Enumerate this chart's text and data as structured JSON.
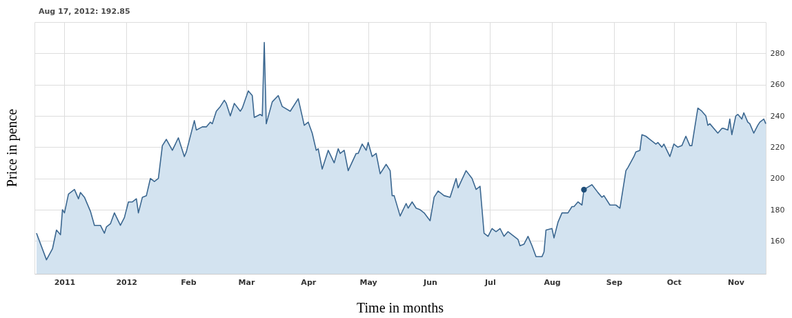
{
  "chart_data": {
    "type": "area",
    "xlabel": "Time in months",
    "ylabel": "Price in pence",
    "annotations": [
      "Aug 17, 2012: 192.85"
    ],
    "x": [
      "2011-11-17",
      "2011-11-22",
      "2011-11-25",
      "2011-11-27",
      "2011-11-29",
      "2011-11-30",
      "2011-12-01",
      "2011-12-03",
      "2011-12-06",
      "2011-12-08",
      "2011-12-09",
      "2011-12-11",
      "2011-12-14",
      "2011-12-16",
      "2011-12-19",
      "2011-12-21",
      "2011-12-22",
      "2011-12-24",
      "2011-12-26",
      "2011-12-29",
      "2011-12-31",
      "2012-01-02",
      "2012-01-04",
      "2012-01-06",
      "2012-01-07",
      "2012-01-09",
      "2012-01-11",
      "2012-01-13",
      "2012-01-15",
      "2012-01-17",
      "2012-01-19",
      "2012-01-21",
      "2012-01-24",
      "2012-01-27",
      "2012-01-30",
      "2012-01-31",
      "2012-02-04",
      "2012-02-05",
      "2012-02-08",
      "2012-02-10",
      "2012-02-12",
      "2012-02-13",
      "2012-02-15",
      "2012-02-17",
      "2012-02-19",
      "2012-02-20",
      "2012-02-22",
      "2012-02-24",
      "2012-02-27",
      "2012-02-28",
      "2012-03-02",
      "2012-03-04",
      "2012-03-05",
      "2012-03-08",
      "2012-03-09",
      "2012-03-10",
      "2012-03-11",
      "2012-03-14",
      "2012-03-17",
      "2012-03-19",
      "2012-03-23",
      "2012-03-27",
      "2012-03-30",
      "2012-04-01",
      "2012-04-03",
      "2012-04-05",
      "2012-04-06",
      "2012-04-08",
      "2012-04-11",
      "2012-04-14",
      "2012-04-16",
      "2012-04-17",
      "2012-04-19",
      "2012-04-21",
      "2012-04-25",
      "2012-04-26",
      "2012-04-28",
      "2012-04-30",
      "2012-05-01",
      "2012-05-03",
      "2012-05-05",
      "2012-05-07",
      "2012-05-10",
      "2012-05-12",
      "2012-05-13",
      "2012-05-14",
      "2012-05-17",
      "2012-05-20",
      "2012-05-21",
      "2012-05-23",
      "2012-05-25",
      "2012-05-27",
      "2012-05-29",
      "2012-06-01",
      "2012-06-03",
      "2012-06-05",
      "2012-06-07",
      "2012-06-08",
      "2012-06-11",
      "2012-06-14",
      "2012-06-15",
      "2012-06-19",
      "2012-06-22",
      "2012-06-24",
      "2012-06-26",
      "2012-06-28",
      "2012-06-30",
      "2012-07-02",
      "2012-07-04",
      "2012-07-06",
      "2012-07-08",
      "2012-07-10",
      "2012-07-13",
      "2012-07-15",
      "2012-07-16",
      "2012-07-18",
      "2012-07-20",
      "2012-07-22",
      "2012-07-24",
      "2012-07-27",
      "2012-07-28",
      "2012-07-29",
      "2012-08-01",
      "2012-08-02",
      "2012-08-04",
      "2012-08-06",
      "2012-08-09",
      "2012-08-11",
      "2012-08-12",
      "2012-08-14",
      "2012-08-16",
      "2012-08-17",
      "2012-08-21",
      "2012-08-24",
      "2012-08-26",
      "2012-08-27",
      "2012-08-30",
      "2012-09-01",
      "2012-09-02",
      "2012-09-04",
      "2012-09-07",
      "2012-09-08",
      "2012-09-11",
      "2012-09-12",
      "2012-09-14",
      "2012-09-15",
      "2012-09-17",
      "2012-09-19",
      "2012-09-22",
      "2012-09-23",
      "2012-09-25",
      "2012-09-26",
      "2012-09-29",
      "2012-10-01",
      "2012-10-03",
      "2012-10-05",
      "2012-10-07",
      "2012-10-09",
      "2012-10-10",
      "2012-10-13",
      "2012-10-15",
      "2012-10-17",
      "2012-10-18",
      "2012-10-19",
      "2012-10-23",
      "2012-10-25",
      "2012-10-26",
      "2012-10-28",
      "2012-10-29",
      "2012-10-30",
      "2012-11-01",
      "2012-11-02",
      "2012-11-04",
      "2012-11-05",
      "2012-11-07",
      "2012-11-08",
      "2012-11-10",
      "2012-11-12",
      "2012-11-13",
      "2012-11-15",
      "2012-11-16"
    ],
    "series": [
      {
        "color": "#3b6790",
        "values": [
          165,
          148,
          155,
          167,
          164,
          180,
          178,
          190,
          193,
          187,
          191,
          188,
          179,
          170,
          170,
          165,
          169,
          171,
          178,
          170,
          175,
          185,
          185,
          187,
          178,
          188,
          189,
          200,
          198,
          200,
          221,
          225,
          218,
          226,
          214,
          217,
          237,
          231,
          233,
          233,
          236,
          235,
          243,
          246,
          250,
          248,
          240,
          248,
          243,
          245,
          256,
          253,
          239,
          241,
          240,
          287,
          235,
          249,
          253,
          246,
          243,
          251,
          234,
          236,
          229,
          218,
          219,
          206,
          218,
          210,
          219,
          216,
          218,
          205,
          216,
          216,
          222,
          218,
          223,
          214,
          216,
          203,
          209,
          205,
          189,
          189,
          176,
          184,
          181,
          185,
          181,
          180,
          178,
          173,
          188,
          192,
          190,
          189,
          188,
          200,
          194,
          205,
          200,
          193,
          195,
          165,
          163,
          168,
          166,
          168,
          163,
          166,
          163,
          161,
          157,
          158,
          163,
          157,
          150,
          150,
          153,
          167,
          168,
          162,
          172,
          178,
          178,
          182,
          182,
          185,
          183,
          193,
          196,
          191,
          188,
          189,
          183,
          183,
          183,
          181,
          205,
          207,
          214,
          217,
          218,
          228,
          227,
          225,
          222,
          223,
          220,
          222,
          214,
          222,
          220,
          221,
          227,
          221,
          221,
          245,
          243,
          240,
          234,
          235,
          229,
          232,
          232,
          231,
          238,
          228,
          240,
          241,
          238,
          242,
          236,
          235,
          229,
          234,
          236,
          238,
          235
        ]
      },
      {
        "type": "scatter",
        "color": "#1f4e79",
        "marker": "circle",
        "x": [
          "2012-08-17"
        ],
        "values": [
          192.85
        ]
      }
    ],
    "xlim": [
      "2011-11-16",
      "2012-11-16"
    ],
    "xticks": [
      {
        "value": "2011-12-01",
        "label": "2011"
      },
      {
        "value": "2012-01-01",
        "label": "2012"
      },
      {
        "value": "2012-02-01",
        "label": "Feb"
      },
      {
        "value": "2012-03-01",
        "label": "Mar"
      },
      {
        "value": "2012-04-01",
        "label": "Apr"
      },
      {
        "value": "2012-05-01",
        "label": "May"
      },
      {
        "value": "2012-06-01",
        "label": "Jun"
      },
      {
        "value": "2012-07-01",
        "label": "Jul"
      },
      {
        "value": "2012-08-01",
        "label": "Aug"
      },
      {
        "value": "2012-09-01",
        "label": "Sep"
      },
      {
        "value": "2012-10-01",
        "label": "Oct"
      },
      {
        "value": "2012-11-01",
        "label": "Nov"
      }
    ],
    "ylim": [
      139,
      300
    ],
    "yticks": [
      160,
      180,
      200,
      220,
      240,
      260,
      280
    ],
    "grid": true
  }
}
